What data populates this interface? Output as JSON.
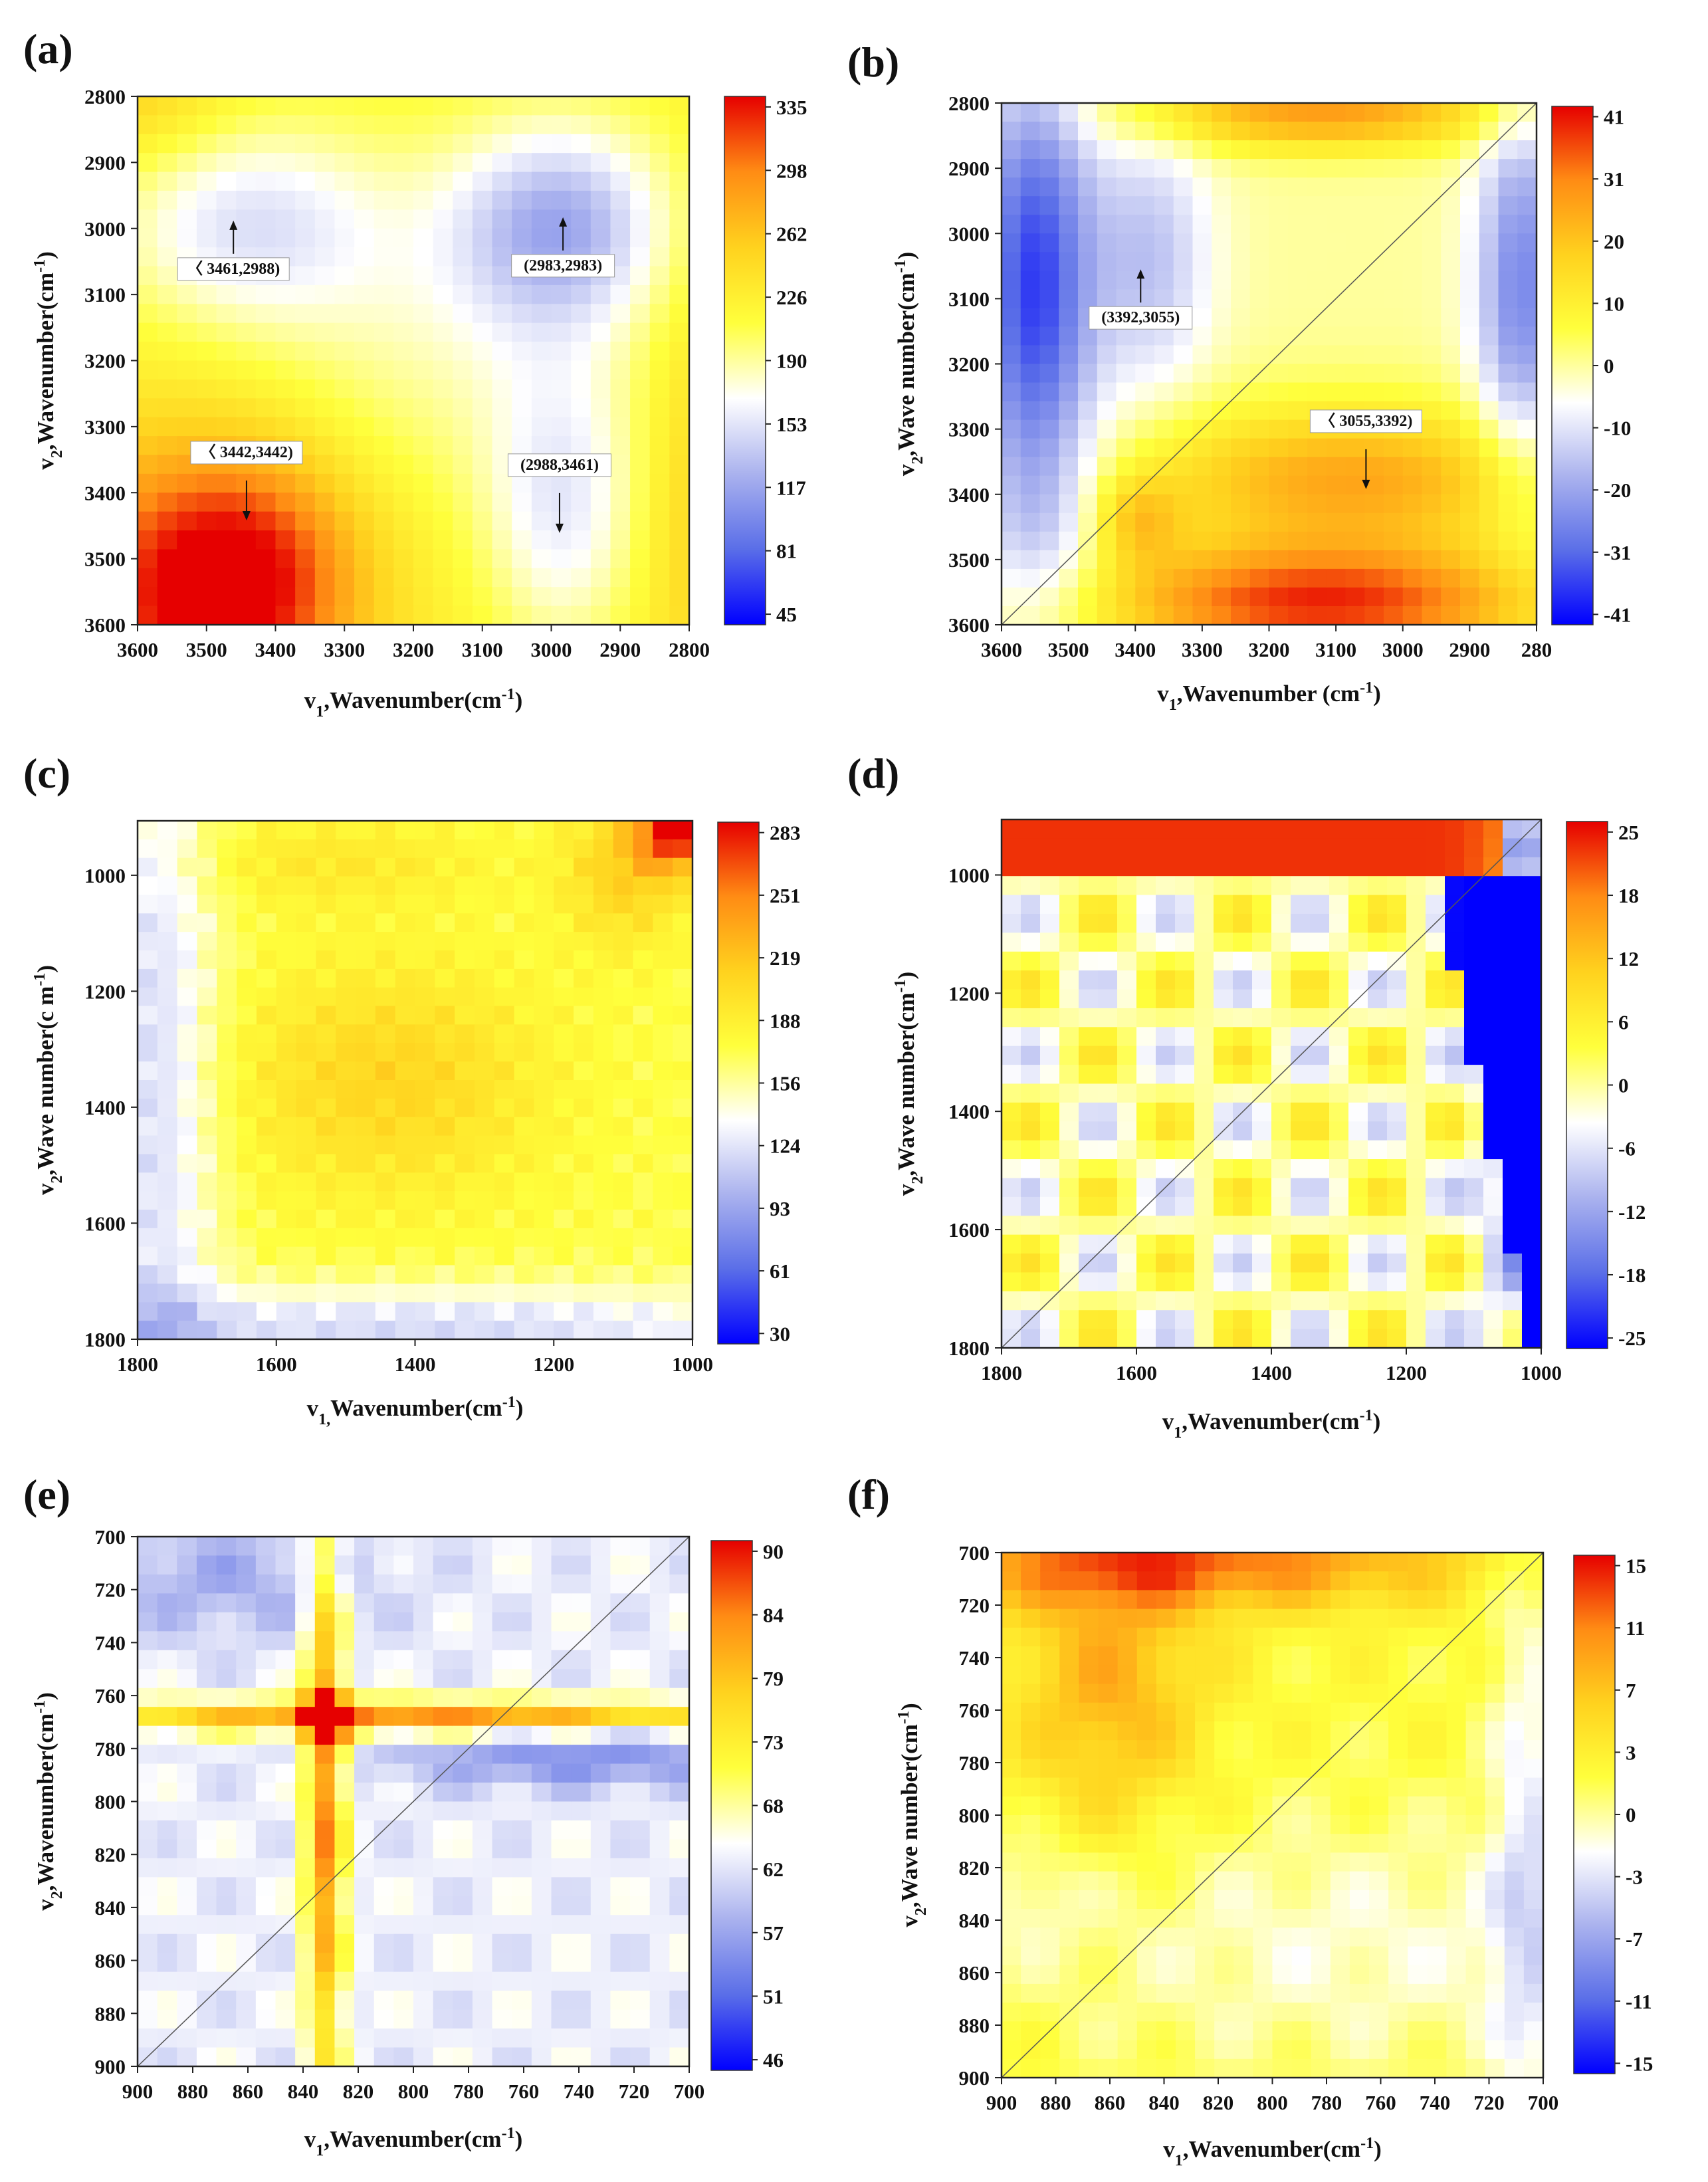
{
  "colors": {
    "colormap": [
      "#0000ff",
      "#5a6ee8",
      "#aab2ee",
      "#ffffff",
      "#ffff3c",
      "#ffd21e",
      "#ff8c14",
      "#e60000"
    ],
    "contour": "#444444"
  },
  "chart_data": [
    {
      "type": "heatmap",
      "label": "(a)",
      "xlabel": "v1,Wavenumber(cm-1)",
      "xlabel_main": "v",
      "xlabel_sub": "1",
      "xlabel_rest": ",Wavenumber(cm",
      "xlabel_sup": "-1",
      "xlabel_end": ")",
      "ylabel": "v2,Wavenumber(cm-1)",
      "ylabel_main": "v",
      "ylabel_sub": "2",
      "ylabel_rest": ",Wavenumber(cm",
      "ylabel_sup": "-1",
      "ylabel_end": ")",
      "xticks": [
        "3600",
        "3500",
        "3400",
        "3300",
        "3200",
        "3100",
        "3000",
        "2900",
        "2800"
      ],
      "yticks": [
        "2800",
        "2900",
        "3000",
        "3100",
        "3200",
        "3300",
        "3400",
        "3500",
        "3600"
      ],
      "colorbar": [
        "335",
        "298",
        "262",
        "226",
        "190",
        "153",
        "117",
        "81",
        "45"
      ],
      "range": [
        45,
        335
      ],
      "annotations": [
        {
          "text": "〈 3461,2988)",
          "x": 3461,
          "y": 2988
        },
        {
          "text": "(2983,2983)",
          "x": 2983,
          "y": 2983
        },
        {
          "text": "〈 3442,3442)",
          "x": 3442,
          "y": 3442
        },
        {
          "text": "(2988,3461)",
          "x": 2988,
          "y": 3461
        }
      ]
    },
    {
      "type": "heatmap",
      "label": "(b)",
      "xlabel": "v1,Wavenumber (cm-1)",
      "xlabel_main": "v",
      "xlabel_sub": "1",
      "xlabel_rest": ",Wavenumber (cm",
      "xlabel_sup": "-1",
      "xlabel_end": ")",
      "ylabel": "v2,Wave number(cm-1)",
      "ylabel_main": "v",
      "ylabel_sub": "2",
      "ylabel_rest": ",Wave number(cm",
      "ylabel_sup": "-1",
      "ylabel_end": ")",
      "xticks": [
        "3600",
        "3500",
        "3400",
        "3300",
        "3200",
        "3100",
        "3000",
        "2900",
        "280"
      ],
      "yticks": [
        "2800",
        "2900",
        "3000",
        "3100",
        "3200",
        "3300",
        "3400",
        "3500",
        "3600"
      ],
      "colorbar": [
        "41",
        "31",
        "20",
        "10",
        "0",
        "-10",
        "-20",
        "-31",
        "-41"
      ],
      "range": [
        -41,
        41
      ],
      "annotations": [
        {
          "text": "(3392,3055)",
          "x": 3392,
          "y": 3055
        },
        {
          "text": "〈 3055,3392)",
          "x": 3055,
          "y": 3392
        }
      ]
    },
    {
      "type": "heatmap",
      "label": "(c)",
      "xlabel": "v1,Wavenumber(cm-1)",
      "xlabel_main": "v",
      "xlabel_sub": "1,",
      "xlabel_rest": "Wavenumber(cm",
      "xlabel_sup": "-1",
      "xlabel_end": ")",
      "ylabel": "v2,Wavenumber(cm-1)",
      "ylabel_main": "v",
      "ylabel_sub": "2",
      "ylabel_rest": ",Wave number(c m",
      "ylabel_sup": "-1",
      "ylabel_end": ")",
      "xticks": [
        "1800",
        "1600",
        "1400",
        "1200",
        "1000"
      ],
      "yticks": [
        "1000",
        "1200",
        "1400",
        "1600",
        "1800"
      ],
      "colorbar": [
        "283",
        "251",
        "219",
        "188",
        "156",
        "124",
        "93",
        "61",
        "30"
      ],
      "range": [
        30,
        283
      ],
      "annotations": []
    },
    {
      "type": "heatmap",
      "label": "(d)",
      "xlabel": "v1,Wavenumber(cm-1)",
      "xlabel_main": "v",
      "xlabel_sub": "1",
      "xlabel_rest": ",Wavenumber(cm",
      "xlabel_sup": "-1",
      "xlabel_end": ")",
      "ylabel": "v2,Wave number(cm-1)",
      "ylabel_main": "v",
      "ylabel_sub": "2",
      "ylabel_rest": ",Wave number(cm",
      "ylabel_sup": "-1",
      "ylabel_end": ")",
      "xticks": [
        "1800",
        "1600",
        "1400",
        "1200",
        "1000"
      ],
      "yticks": [
        "1000",
        "1200",
        "1400",
        "1600",
        "1800"
      ],
      "colorbar": [
        "25",
        "18",
        "12",
        "6",
        "0",
        "-6",
        "-12",
        "-18",
        "-25"
      ],
      "range": [
        -25,
        25
      ],
      "annotations": []
    },
    {
      "type": "heatmap",
      "label": "(e)",
      "xlabel": "v1,Wavenumber(cm-1)",
      "xlabel_main": "v",
      "xlabel_sub": "1",
      "xlabel_rest": ",Wavenumber(cm",
      "xlabel_sup": "-1",
      "xlabel_end": ")",
      "ylabel": "v2,Wavenumber(cm-1)",
      "ylabel_main": "v",
      "ylabel_sub": "2",
      "ylabel_rest": ",Wavenumber(cm",
      "ylabel_sup": "-1",
      "ylabel_end": ")",
      "xticks": [
        "900",
        "880",
        "860",
        "840",
        "820",
        "800",
        "780",
        "760",
        "740",
        "720",
        "700"
      ],
      "yticks": [
        "700",
        "720",
        "740",
        "760",
        "780",
        "800",
        "820",
        "840",
        "860",
        "880",
        "900"
      ],
      "colorbar": [
        "90",
        "84",
        "79",
        "73",
        "68",
        "62",
        "57",
        "51",
        "46"
      ],
      "range": [
        46,
        90
      ],
      "annotations": []
    },
    {
      "type": "heatmap",
      "label": "(f)",
      "xlabel": "v1,Wavenumber(cm-1)",
      "xlabel_main": "v",
      "xlabel_sub": "1",
      "xlabel_rest": ",Wavenumber(cm",
      "xlabel_sup": "-1",
      "xlabel_end": ")",
      "ylabel": "v2,Wave number(cm-1)",
      "ylabel_main": "v",
      "ylabel_sub": "2",
      "ylabel_rest": ",Wave number(cm",
      "ylabel_sup": "-1",
      "ylabel_end": ")",
      "xticks": [
        "900",
        "880",
        "860",
        "840",
        "820",
        "800",
        "780",
        "760",
        "740",
        "720",
        "700"
      ],
      "yticks": [
        "700",
        "720",
        "740",
        "760",
        "780",
        "800",
        "820",
        "840",
        "860",
        "880",
        "900"
      ],
      "colorbar": [
        "15",
        "11",
        "7",
        "3",
        "0",
        "-3",
        "-7",
        "-11",
        "-15"
      ],
      "range": [
        -15,
        15
      ],
      "annotations": []
    }
  ]
}
